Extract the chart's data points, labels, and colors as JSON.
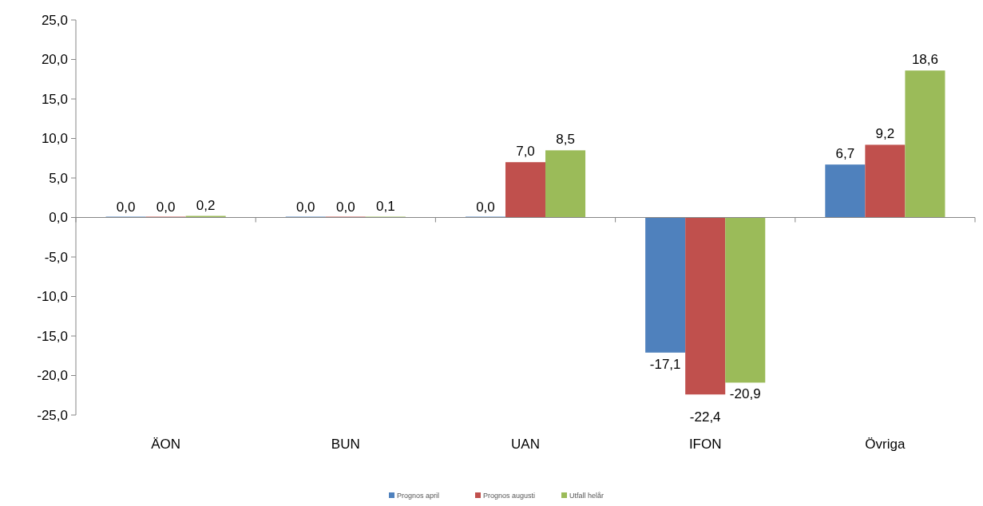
{
  "chart_data": {
    "type": "bar",
    "categories": [
      "ÄON",
      "BUN",
      "UAN",
      "IFON",
      "Övriga"
    ],
    "series": [
      {
        "name": "Prognos april",
        "color": "#4f81bd",
        "values": [
          0.0,
          0.0,
          0.0,
          -17.1,
          6.7
        ],
        "value_labels": [
          "0,0",
          "0,0",
          "0,0",
          "-17,1",
          "6,7"
        ]
      },
      {
        "name": "Prognos augusti",
        "color": "#c0504d",
        "values": [
          0.0,
          0.0,
          7.0,
          -22.4,
          9.2
        ],
        "value_labels": [
          "0,0",
          "0,0",
          "7,0",
          "-22,4",
          "9,2"
        ]
      },
      {
        "name": "Utfall helår",
        "color": "#9bbb59",
        "values": [
          0.2,
          0.1,
          8.5,
          -20.9,
          18.6
        ],
        "value_labels": [
          "0,2",
          "0,1",
          "8,5",
          "-20,9",
          "18,6"
        ]
      }
    ],
    "ylim": [
      -25,
      25
    ],
    "yticks": [
      {
        "value": -25,
        "label": "-25,0"
      },
      {
        "value": -20,
        "label": "-20,0"
      },
      {
        "value": -15,
        "label": "-15,0"
      },
      {
        "value": -10,
        "label": "-10,0"
      },
      {
        "value": -5,
        "label": "-5,0"
      },
      {
        "value": 0,
        "label": "0,0"
      },
      {
        "value": 5,
        "label": "5,0"
      },
      {
        "value": 10,
        "label": "10,0"
      },
      {
        "value": 15,
        "label": "15,0"
      },
      {
        "value": 20,
        "label": "20,0"
      },
      {
        "value": 25,
        "label": "25,0"
      }
    ],
    "legend": "bottom"
  }
}
